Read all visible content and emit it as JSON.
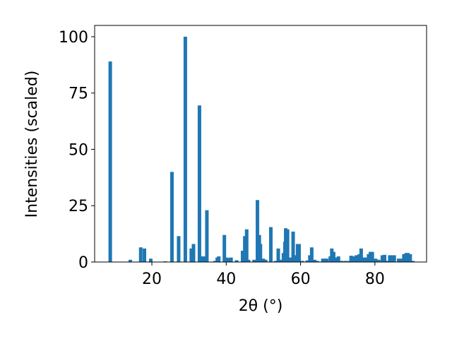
{
  "chart_data": {
    "type": "bar",
    "xlabel": "2θ (°)",
    "ylabel": "Intensities (scaled)",
    "color": "#1f77b4",
    "x": [
      8.8,
      14.2,
      17.0,
      18.0,
      19.7,
      23.6,
      25.4,
      27.2,
      29.0,
      30.6,
      31.2,
      32.8,
      33.6,
      34.4,
      34.8,
      37.0,
      37.6,
      38.0,
      39.5,
      40.0,
      40.8,
      41.3,
      42.8,
      44.4,
      45.0,
      45.5,
      46.0,
      47.5,
      48.4,
      48.9,
      49.2,
      50.0,
      50.6,
      52.0,
      53.3,
      54.0,
      54.6,
      55.4,
      55.8,
      56.0,
      56.5,
      57.2,
      58.0,
      58.3,
      59.2,
      59.6,
      60.5,
      61.8,
      62.5,
      63.0,
      63.8,
      64.5,
      66.0,
      66.5,
      67.0,
      68.0,
      68.4,
      68.9,
      69.5,
      70.2,
      71.0,
      72.0,
      73.0,
      73.6,
      74.2,
      75.0,
      75.8,
      76.3,
      77.0,
      77.7,
      78.3,
      78.8,
      79.3,
      80.2,
      81.0,
      82.0,
      82.6,
      83.5,
      84.0,
      84.6,
      85.2,
      86.4,
      87.0,
      87.8,
      88.4,
      88.9,
      89.5,
      90.2
    ],
    "values": [
      89,
      1,
      6.5,
      6,
      1.5,
      0.3,
      40,
      11.5,
      100,
      6,
      8,
      69.5,
      2.5,
      2.5,
      23,
      0.5,
      2,
      2.5,
      12,
      2,
      1.8,
      2,
      0.8,
      5,
      11.5,
      14.5,
      1,
      1,
      27.5,
      12,
      8,
      1.5,
      1,
      15.5,
      0.5,
      6,
      1,
      4,
      9,
      15,
      14.5,
      2,
      13.5,
      3,
      8,
      8,
      0.5,
      0.7,
      3,
      6.5,
      1,
      0.5,
      1.5,
      1.5,
      1.5,
      2.5,
      6,
      4.5,
      2,
      2.5,
      0.5,
      0.5,
      0.5,
      2.8,
      2.5,
      3,
      3.5,
      6,
      2,
      2,
      3.5,
      4.5,
      4.5,
      1.5,
      1,
      3,
      3.2,
      0.5,
      3,
      3,
      3,
      1.5,
      1.5,
      3.5,
      4,
      4,
      3.5,
      0.5
    ],
    "xlim": [
      4.6,
      93.9
    ],
    "ylim": [
      0,
      105
    ],
    "xticks": [
      20,
      40,
      60,
      80
    ],
    "yticks": [
      0,
      25,
      50,
      75,
      100
    ]
  }
}
